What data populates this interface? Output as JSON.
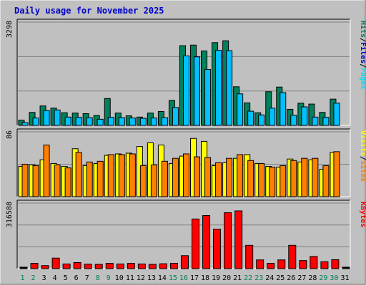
{
  "title": "Daily usage for November 2025",
  "colors": {
    "background": "#C0C0C0",
    "title": "#0000CC",
    "grid": "#808080",
    "hits": "#00805C",
    "files": "#00C0FF",
    "pages": "#00E0FF",
    "visits": "#FFFF00",
    "sites": "#FF8000",
    "kbytes": "#FF0000",
    "weekend_label": "#00805C",
    "weekday_label": "#000000"
  },
  "chart_data": [
    {
      "type": "bar",
      "name": "hits-files-pages",
      "ytick": "3298",
      "ylim": [
        0,
        3298
      ],
      "legend_labels": [
        "Pages",
        "Files",
        "Hits"
      ],
      "legend_colors": [
        "#00E0FF",
        "#0000CC",
        "#00805C"
      ],
      "categories": [
        "1",
        "2",
        "3",
        "4",
        "5",
        "6",
        "7",
        "8",
        "9",
        "10",
        "11",
        "12",
        "13",
        "14",
        "15",
        "16",
        "17",
        "18",
        "19",
        "20",
        "21",
        "22",
        "23",
        "24",
        "25",
        "26",
        "27",
        "28",
        "29",
        "30",
        "31"
      ],
      "series": [
        {
          "name": "Hits",
          "values": [
            170,
            420,
            630,
            560,
            410,
            400,
            380,
            320,
            870,
            400,
            310,
            270,
            400,
            450,
            810,
            2580,
            2600,
            2410,
            2680,
            2740,
            1250,
            730,
            410,
            1090,
            1240,
            520,
            720,
            690,
            420,
            850,
            0
          ]
        },
        {
          "name": "Files",
          "values": [
            90,
            240,
            480,
            500,
            270,
            260,
            250,
            200,
            260,
            250,
            240,
            230,
            240,
            250,
            580,
            2250,
            2220,
            1810,
            2430,
            2420,
            1020,
            460,
            340,
            560,
            1060,
            330,
            600,
            270,
            260,
            720,
            0
          ]
        }
      ]
    },
    {
      "type": "bar",
      "name": "visits-sites",
      "ytick": "86",
      "ylim": [
        0,
        86
      ],
      "legend_labels": [
        "Sites",
        "Visits"
      ],
      "legend_colors": [
        "#FF8000",
        "#FFFF00"
      ],
      "categories": [
        "1",
        "2",
        "3",
        "4",
        "5",
        "6",
        "7",
        "8",
        "9",
        "10",
        "11",
        "12",
        "13",
        "14",
        "15",
        "16",
        "17",
        "18",
        "19",
        "20",
        "21",
        "22",
        "23",
        "24",
        "25",
        "26",
        "27",
        "28",
        "29",
        "30",
        "31"
      ],
      "series": [
        {
          "name": "Visits",
          "values": [
            41,
            43,
            50,
            45,
            41,
            65,
            42,
            45,
            56,
            58,
            59,
            68,
            73,
            70,
            45,
            55,
            79,
            75,
            42,
            46,
            52,
            57,
            45,
            41,
            40,
            51,
            47,
            50,
            37,
            60,
            0
          ]
        },
        {
          "name": "Sites",
          "values": [
            44,
            42,
            70,
            43,
            39,
            60,
            47,
            48,
            57,
            57,
            58,
            42,
            43,
            48,
            52,
            58,
            54,
            53,
            46,
            52,
            57,
            49,
            45,
            40,
            42,
            49,
            52,
            52,
            42,
            61,
            0
          ]
        }
      ]
    },
    {
      "type": "bar",
      "name": "kbytes",
      "ytick": "316588",
      "ylim": [
        0,
        316588
      ],
      "legend_labels": [
        "KBytes"
      ],
      "legend_colors": [
        "#FF0000"
      ],
      "categories": [
        "1",
        "2",
        "3",
        "4",
        "5",
        "6",
        "7",
        "8",
        "9",
        "10",
        "11",
        "12",
        "13",
        "14",
        "15",
        "16",
        "17",
        "18",
        "19",
        "20",
        "21",
        "22",
        "23",
        "24",
        "25",
        "26",
        "27",
        "28",
        "29",
        "30",
        "31"
      ],
      "series": [
        {
          "name": "KBytes",
          "values": [
            0,
            26000,
            15000,
            52000,
            23000,
            30000,
            22000,
            21000,
            26000,
            23000,
            26000,
            23000,
            21000,
            24000,
            26000,
            64000,
            245000,
            262000,
            195000,
            276000,
            285000,
            115000,
            43000,
            26000,
            43000,
            115000,
            40000,
            60000,
            34000,
            44000,
            0
          ]
        }
      ]
    }
  ],
  "days": [
    "1",
    "2",
    "3",
    "4",
    "5",
    "6",
    "7",
    "8",
    "9",
    "10",
    "11",
    "12",
    "13",
    "14",
    "15",
    "16",
    "17",
    "18",
    "19",
    "20",
    "21",
    "22",
    "23",
    "24",
    "25",
    "26",
    "27",
    "28",
    "29",
    "30",
    "31"
  ],
  "weekend_days": [
    "1",
    "2",
    "8",
    "9",
    "15",
    "16",
    "22",
    "23",
    "29",
    "30"
  ]
}
